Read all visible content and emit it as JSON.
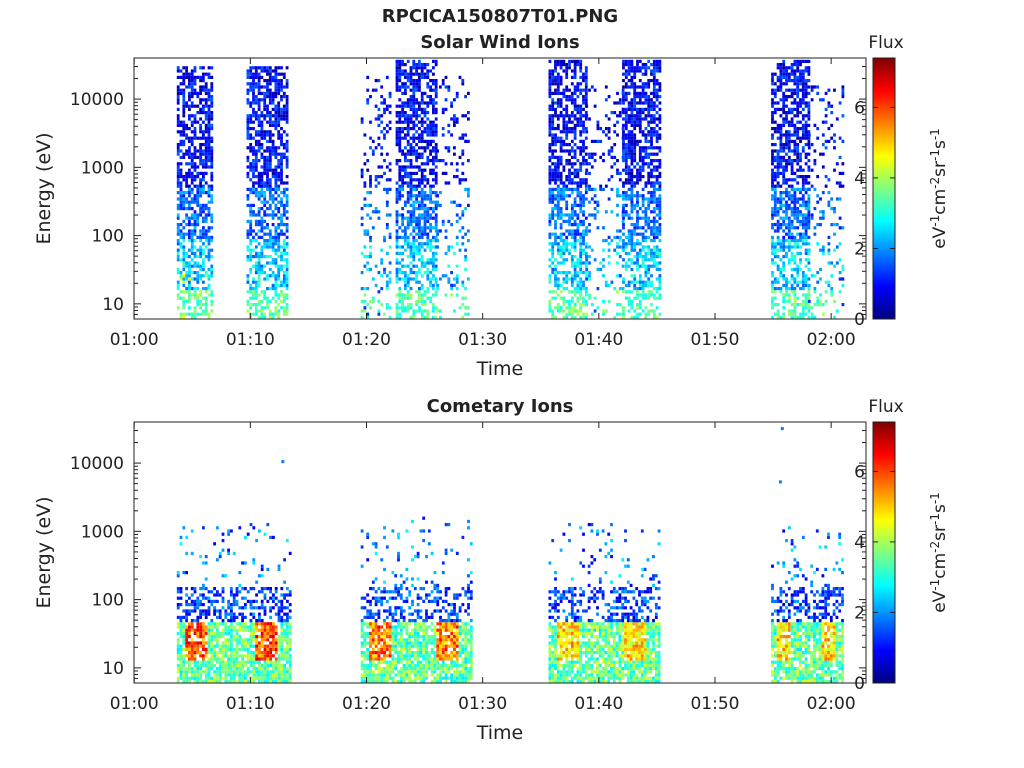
{
  "figure": {
    "title": "RPCICA150807T01.PNG"
  },
  "colormap_stops": [
    "#00007f",
    "#0000ff",
    "#007fff",
    "#00ffff",
    "#7fff7f",
    "#ffff00",
    "#ff7f00",
    "#ff0000",
    "#7f0000"
  ],
  "chart_data": [
    {
      "type": "heatmap",
      "title": "Solar Wind Ions",
      "xlabel": "Time",
      "ylabel": "Energy (eV)",
      "ylog": true,
      "xlim": [
        "00:59:59",
        "02:03:00"
      ],
      "ylim": [
        6,
        40000
      ],
      "x_ticks": [
        "01:00",
        "01:10",
        "01:20",
        "01:30",
        "01:40",
        "01:50",
        "02:00"
      ],
      "y_ticks": [
        "10",
        "100",
        "1000",
        "10000"
      ],
      "colorbar": {
        "title": "Flux",
        "label": "eV-1cm-2sr-1s-1",
        "range": [
          0,
          7.4
        ],
        "ticks": [
          "0",
          "2",
          "4",
          "6"
        ]
      },
      "bursts": [
        {
          "start": "01:03:40",
          "end": "01:06:40",
          "peak_flux": 4.8,
          "emax": 30000
        },
        {
          "start": "01:09:40",
          "end": "01:13:10",
          "peak_flux": 3.4,
          "emax": 30000
        },
        {
          "start": "01:19:30",
          "end": "01:22:00",
          "peak_flux": 1.5,
          "emax": 20000,
          "sparse": true
        },
        {
          "start": "01:22:30",
          "end": "01:26:00",
          "peak_flux": 3.4,
          "emax": 35000
        },
        {
          "start": "01:26:00",
          "end": "01:28:50",
          "peak_flux": 1.4,
          "emax": 20000,
          "sparse": true
        },
        {
          "start": "01:35:40",
          "end": "01:38:50",
          "peak_flux": 3.3,
          "emax": 35000
        },
        {
          "start": "01:38:50",
          "end": "01:42:00",
          "peak_flux": 1.5,
          "emax": 15000,
          "sparse": true
        },
        {
          "start": "01:42:00",
          "end": "01:45:10",
          "peak_flux": 3.3,
          "emax": 35000
        },
        {
          "start": "01:54:50",
          "end": "01:58:00",
          "peak_flux": 3.3,
          "emax": 35000
        },
        {
          "start": "01:58:00",
          "end": "02:01:00",
          "peak_flux": 1.4,
          "emax": 15000,
          "sparse": true
        }
      ]
    },
    {
      "type": "heatmap",
      "title": "Cometary Ions",
      "xlabel": "Time",
      "ylabel": "Energy (eV)",
      "ylog": true,
      "xlim": [
        "00:59:59",
        "02:03:00"
      ],
      "ylim": [
        6,
        40000
      ],
      "x_ticks": [
        "01:00",
        "01:10",
        "01:20",
        "01:30",
        "01:40",
        "01:50",
        "02:00"
      ],
      "y_ticks": [
        "10",
        "100",
        "1000",
        "10000"
      ],
      "colorbar": {
        "title": "Flux",
        "label": "eV-1cm-2sr-1s-1",
        "range": [
          0,
          7.4
        ],
        "ticks": [
          "0",
          "2",
          "4",
          "6"
        ]
      },
      "bursts": [
        {
          "start": "01:03:40",
          "end": "01:13:20",
          "peak_flux": 6.8,
          "emax": 1200
        },
        {
          "start": "01:19:30",
          "end": "01:29:00",
          "peak_flux": 6.5,
          "emax": 1500
        },
        {
          "start": "01:35:40",
          "end": "01:45:10",
          "peak_flux": 5.8,
          "emax": 1200
        },
        {
          "start": "01:54:50",
          "end": "02:01:00",
          "peak_flux": 5.7,
          "emax": 1100
        }
      ],
      "isolated_points": [
        {
          "time": "01:12:40",
          "energy": 10500
        },
        {
          "time": "01:55:40",
          "energy": 32000
        },
        {
          "time": "01:55:30",
          "energy": 5300
        }
      ]
    }
  ]
}
